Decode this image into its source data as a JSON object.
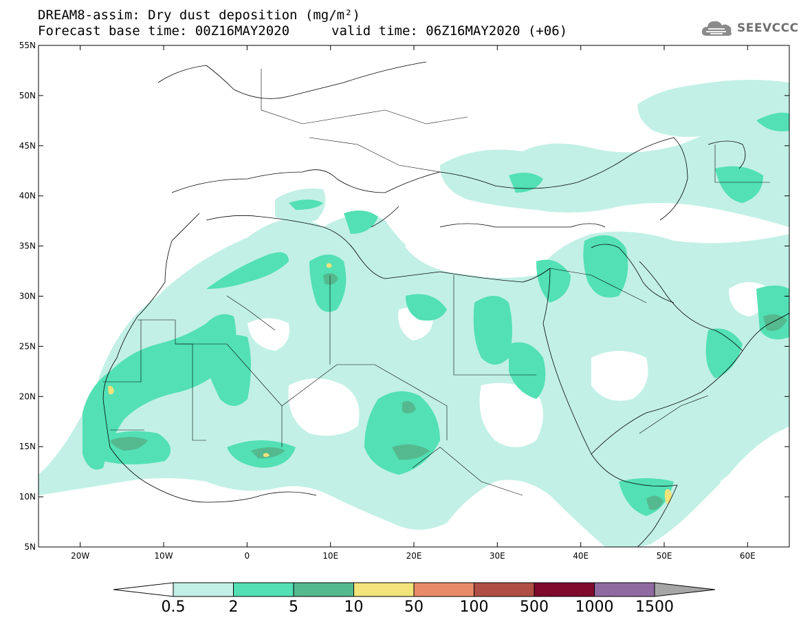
{
  "header": {
    "title_line1": "DREAM8-assim: Dry dust deposition (mg/m²)",
    "title_line2": "Forecast base time: 00Z16MAY2020",
    "valid_time": "valid time: 06Z16MAY2020 (+06)"
  },
  "logo": {
    "name": "SEEVCCC",
    "icon": "cloud-icon",
    "color": "#707070"
  },
  "map": {
    "lon_range": [
      -25,
      65
    ],
    "lat_range": [
      5,
      55
    ],
    "lat_labels": [
      "55N",
      "50N",
      "45N",
      "40N",
      "35N",
      "30N",
      "25N",
      "20N",
      "15N",
      "10N",
      "5N"
    ],
    "lon_labels": [
      "20W",
      "10W",
      "0",
      "10E",
      "20E",
      "30E",
      "40E",
      "50E",
      "60E"
    ]
  },
  "colorbar": {
    "labels": [
      "0.5",
      "2",
      "5",
      "10",
      "50",
      "100",
      "500",
      "1000",
      "1500"
    ],
    "colors": [
      "#c2f0e6",
      "#52e0b4",
      "#55b98f",
      "#f2e37a",
      "#e88a68",
      "#b04f45",
      "#7e0a2e",
      "#8e6aa0"
    ],
    "under_color": "#ffffff",
    "over_color": "#a6a6a6"
  }
}
